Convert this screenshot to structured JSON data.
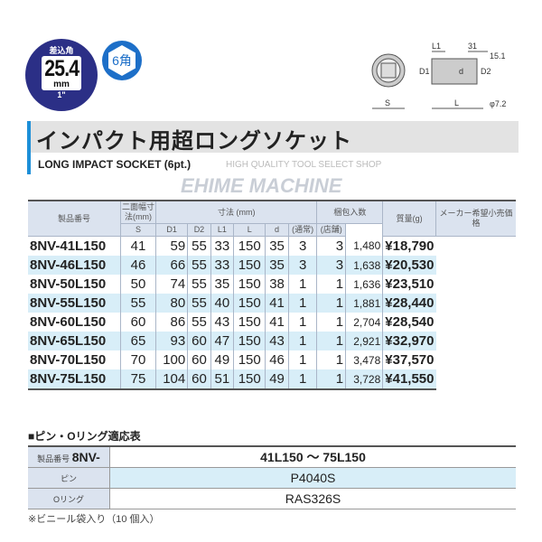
{
  "badge": {
    "label": "差込角",
    "size": "25.4",
    "unit": "mm",
    "inch": "1\"",
    "color": "#2b2f86"
  },
  "hex_badge": "6角",
  "diagram": {
    "L1": "L1",
    "31": "31",
    "15_1": "15.1",
    "D1": "D1",
    "D2": "D2",
    "d": "d",
    "S": "S",
    "L": "L",
    "phi": "φ7.2"
  },
  "title": "インパクト用超ロングソケット",
  "subtitle": "LONG IMPACT SOCKET (6pt.)",
  "watermark": {
    "tagline": "HIGH QUALITY TOOL SELECT SHOP",
    "name": "EHIME MACHINE"
  },
  "table": {
    "headers": {
      "product": "製品番号",
      "s_group": "二面幅寸法(mm)",
      "dims": "寸法 (mm)",
      "pack": "梱包入数",
      "weight": "質量(g)",
      "price": "メーカー希望小売価格",
      "s": "S",
      "d1": "D1",
      "d2": "D2",
      "l1": "L1",
      "l": "L",
      "d": "d",
      "pack_normal": "(通常)",
      "pack_store": "(店舗)"
    },
    "rows": [
      [
        "8NV-41L150",
        "41",
        "59",
        "55",
        "33",
        "150",
        "35",
        "3",
        "3",
        "1,480",
        "¥18,790"
      ],
      [
        "8NV-46L150",
        "46",
        "66",
        "55",
        "33",
        "150",
        "35",
        "3",
        "3",
        "1,638",
        "¥20,530"
      ],
      [
        "8NV-50L150",
        "50",
        "74",
        "55",
        "35",
        "150",
        "38",
        "1",
        "1",
        "1,636",
        "¥23,510"
      ],
      [
        "8NV-55L150",
        "55",
        "80",
        "55",
        "40",
        "150",
        "41",
        "1",
        "1",
        "1,881",
        "¥28,440"
      ],
      [
        "8NV-60L150",
        "60",
        "86",
        "55",
        "43",
        "150",
        "41",
        "1",
        "1",
        "2,704",
        "¥28,540"
      ],
      [
        "8NV-65L150",
        "65",
        "93",
        "60",
        "47",
        "150",
        "43",
        "1",
        "1",
        "2,921",
        "¥32,970"
      ],
      [
        "8NV-70L150",
        "70",
        "100",
        "60",
        "49",
        "150",
        "46",
        "1",
        "1",
        "3,478",
        "¥37,570"
      ],
      [
        "8NV-75L150",
        "75",
        "104",
        "60",
        "51",
        "150",
        "49",
        "1",
        "1",
        "3,728",
        "¥41,550"
      ]
    ]
  },
  "pin_table": {
    "title": "■ピン・Oリング適応表",
    "product_label": "製品番号",
    "product_prefix": "8NV-",
    "range": "41L150 ～ 75L150",
    "pin_label": "ピン",
    "pin": "P4040S",
    "oring_label": "Oリング",
    "oring": "RAS326S"
  },
  "note": "※ビニール袋入り（10 個入）",
  "colors": {
    "accent": "#1d8fd8",
    "row_alt": "#d8eef8",
    "header_bg": "#dbe3ef"
  }
}
